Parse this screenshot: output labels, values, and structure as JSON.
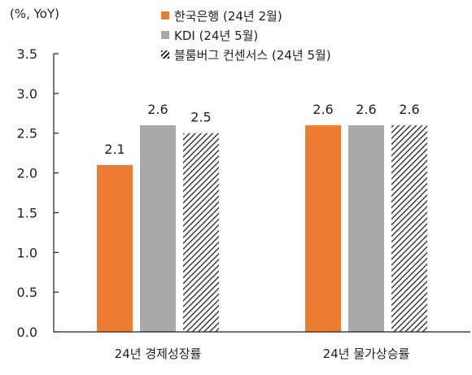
{
  "chart_data": {
    "type": "bar",
    "unit_label": "(%, YoY)",
    "categories": [
      "24년 경제성장률",
      "24년 물가상승률"
    ],
    "series": [
      {
        "name": "한국은행 (24년 2월)",
        "values": [
          2.1,
          2.6
        ],
        "color": "#ED7D31",
        "pattern": "solid"
      },
      {
        "name": "KDI (24년 5월)",
        "values": [
          2.6,
          2.6
        ],
        "color": "#A9A9A9",
        "pattern": "solid"
      },
      {
        "name": "블룸버그 컨센서스 (24년 5월)",
        "values": [
          2.5,
          2.6
        ],
        "color": "#222222",
        "pattern": "diagonal-hatch"
      }
    ],
    "ylim": [
      0.0,
      3.5
    ],
    "yticks": [
      "0.0",
      "0.5",
      "1.0",
      "1.5",
      "2.0",
      "2.5",
      "3.0",
      "3.5"
    ],
    "grid": false,
    "legend_position": "top-center"
  }
}
